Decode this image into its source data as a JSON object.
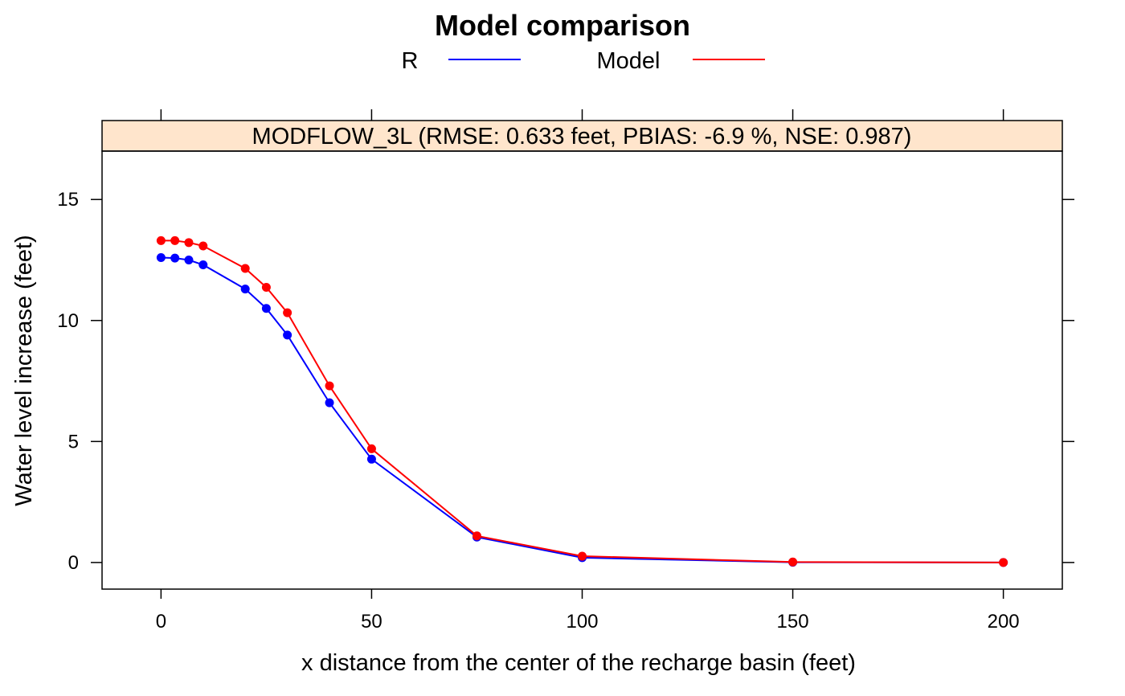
{
  "chart_data": {
    "type": "line",
    "title": "Model comparison",
    "panel_title": "MODFLOW_3L (RMSE: 0.633 feet, PBIAS: -6.9 %, NSE: 0.987)",
    "xlabel": "x distance from the center of the recharge basin (feet)",
    "ylabel": "Water level increase (feet)",
    "xlim": [
      -14,
      214
    ],
    "ylim": [
      -1.1,
      17
    ],
    "xticks": [
      0,
      50,
      100,
      150,
      200
    ],
    "yticks": [
      0,
      5,
      10,
      15
    ],
    "grid": false,
    "legend_position": "top",
    "x": [
      0,
      3.3,
      6.6,
      10,
      20,
      25,
      30,
      40,
      50,
      75,
      100,
      150,
      200
    ],
    "series": [
      {
        "name": "R",
        "color": "#0000ff",
        "values": [
          12.6,
          12.58,
          12.5,
          12.3,
          11.3,
          10.5,
          9.4,
          6.6,
          4.27,
          1.05,
          0.2,
          0.01,
          0.0
        ]
      },
      {
        "name": "Model",
        "color": "#ff0000",
        "values": [
          13.3,
          13.3,
          13.22,
          13.08,
          12.15,
          11.37,
          10.32,
          7.3,
          4.7,
          1.1,
          0.26,
          0.02,
          0.0
        ]
      }
    ],
    "strip_color": "#ffe5cc"
  }
}
